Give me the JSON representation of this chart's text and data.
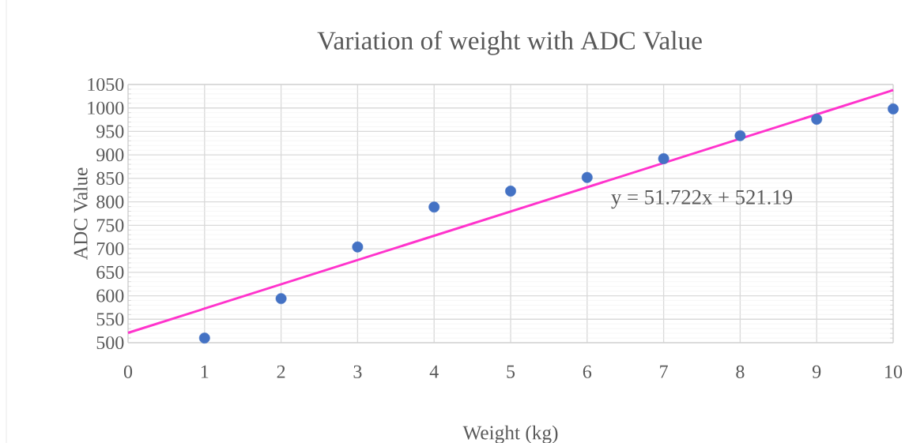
{
  "chart_data": {
    "type": "scatter",
    "title": "Variation of weight with ADC Value",
    "xlabel": "Weight (kg)",
    "ylabel": "ADC Value",
    "x": [
      1,
      2,
      3,
      4,
      5,
      6,
      7,
      8,
      9,
      10
    ],
    "series": [
      {
        "color": "#4472c4",
        "marker": "circle",
        "values": [
          510,
          594,
          704,
          789,
          823,
          852,
          892,
          941,
          976,
          998
        ]
      },
      {
        "type": "line",
        "color": "#ff33cc",
        "marker": "none",
        "line_style": "solid",
        "x": [
          0,
          10
        ],
        "values": [
          521,
          1038
        ]
      }
    ],
    "annotations": [
      "y = 51.722x + 521.19"
    ],
    "xlim": [
      0,
      10
    ],
    "xticks": [
      0,
      1,
      2,
      3,
      4,
      5,
      6,
      7,
      8,
      9,
      10
    ],
    "ylim": [
      500,
      1050
    ],
    "yticks": [
      500,
      550,
      600,
      650,
      700,
      750,
      800,
      850,
      900,
      950,
      1000,
      1050
    ],
    "grid": true
  }
}
